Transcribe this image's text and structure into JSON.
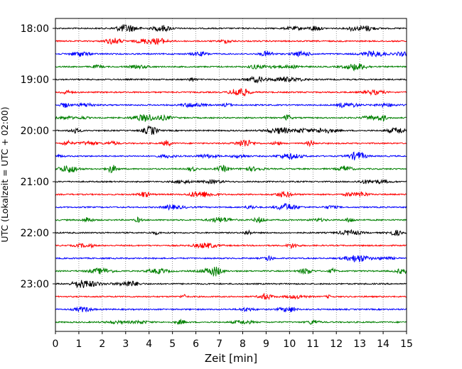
{
  "chart_data": {
    "type": "line",
    "title": "",
    "xlabel": "Zeit  [min]",
    "ylabel": "UTC (Lokalzeit = UTC + 02:00)",
    "xlim": [
      0,
      15
    ],
    "x_ticks": [
      "0",
      "1",
      "2",
      "3",
      "4",
      "5",
      "6",
      "7",
      "8",
      "9",
      "10",
      "11",
      "12",
      "13",
      "14",
      "15"
    ],
    "y_tick_labels": [
      "18:00",
      "19:00",
      "20:00",
      "21:00",
      "22:00",
      "23:00"
    ],
    "traces_start": "18:00",
    "trace_interval_minutes": 15,
    "trace_count": 24,
    "trace_colors": [
      "#000000",
      "#ff0000",
      "#0000ff",
      "#008000"
    ],
    "grid": "vertical dotted lines at each minute"
  }
}
